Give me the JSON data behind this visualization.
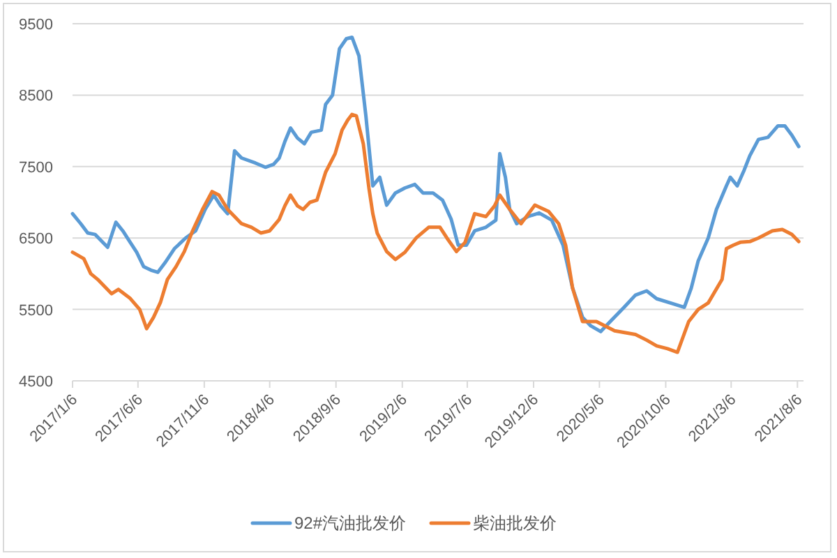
{
  "chart_data": {
    "type": "line",
    "xlim": [
      "2017-01-06",
      "2021-08-20"
    ],
    "xticks": [
      {
        "value": "2017-01-06",
        "label": "2017/1/6"
      },
      {
        "value": "2017-06-06",
        "label": "2017/6/6"
      },
      {
        "value": "2017-11-06",
        "label": "2017/11/6"
      },
      {
        "value": "2018-04-06",
        "label": "2018/4/6"
      },
      {
        "value": "2018-09-06",
        "label": "2018/9/6"
      },
      {
        "value": "2019-02-06",
        "label": "2019/2/6"
      },
      {
        "value": "2019-07-06",
        "label": "2019/7/6"
      },
      {
        "value": "2019-12-06",
        "label": "2019/12/6"
      },
      {
        "value": "2020-05-06",
        "label": "2020/5/6"
      },
      {
        "value": "2020-10-06",
        "label": "2020/10/6"
      },
      {
        "value": "2021-03-06",
        "label": "2021/3/6"
      },
      {
        "value": "2021-08-06",
        "label": "2021/8/6"
      }
    ],
    "ylim": [
      4500,
      9500
    ],
    "yticks": [
      4500,
      5500,
      6500,
      7500,
      8500,
      9500
    ],
    "grid": "y",
    "legend": "bottom",
    "series": [
      {
        "name": "92#汽油批发价",
        "color": "#5b9bd5",
        "x": [
          "2017-01-06",
          "2017-01-25",
          "2017-02-10",
          "2017-02-27",
          "2017-03-15",
          "2017-03-28",
          "2017-04-16",
          "2017-05-02",
          "2017-05-18",
          "2017-06-03",
          "2017-06-19",
          "2017-07-06",
          "2017-07-22",
          "2017-08-07",
          "2017-08-29",
          "2017-09-24",
          "2017-10-17",
          "2017-11-08",
          "2017-11-28",
          "2017-12-14",
          "2017-12-30",
          "2018-01-15",
          "2018-01-31",
          "2018-03-04",
          "2018-03-27",
          "2018-04-15",
          "2018-04-28",
          "2018-05-11",
          "2018-05-24",
          "2018-06-09",
          "2018-06-25",
          "2018-07-11",
          "2018-08-03",
          "2018-08-13",
          "2018-08-29",
          "2018-09-14",
          "2018-09-30",
          "2018-10-13",
          "2018-10-29",
          "2018-11-14",
          "2018-11-30",
          "2018-12-16",
          "2019-01-01",
          "2019-01-21",
          "2019-02-12",
          "2019-03-07",
          "2019-03-26",
          "2019-04-18",
          "2019-05-10",
          "2019-05-30",
          "2019-06-15",
          "2019-07-04",
          "2019-07-23",
          "2019-08-18",
          "2019-09-10",
          "2019-09-19",
          "2019-10-02",
          "2019-10-12",
          "2019-10-28",
          "2019-11-23",
          "2019-12-19",
          "2020-01-17",
          "2020-02-12",
          "2020-03-05",
          "2020-03-28",
          "2020-04-16",
          "2020-05-09",
          "2020-06-03",
          "2020-07-02",
          "2020-07-28",
          "2020-08-23",
          "2020-09-15",
          "2020-10-17",
          "2020-11-18",
          "2020-12-04",
          "2020-12-20",
          "2021-01-12",
          "2021-01-31",
          "2021-02-23",
          "2021-03-04",
          "2021-03-20",
          "2021-04-05",
          "2021-04-18",
          "2021-05-08",
          "2021-05-30",
          "2021-06-22",
          "2021-07-08",
          "2021-07-24",
          "2021-08-09"
        ],
        "values": [
          6840,
          6700,
          6570,
          6550,
          6450,
          6370,
          6720,
          6600,
          6450,
          6300,
          6100,
          6050,
          6020,
          6150,
          6350,
          6500,
          6600,
          6900,
          7100,
          6950,
          6840,
          7720,
          7620,
          7550,
          7490,
          7530,
          7620,
          7850,
          8040,
          7900,
          7820,
          7980,
          8010,
          8370,
          8500,
          9150,
          9290,
          9310,
          9050,
          8210,
          7230,
          7350,
          6960,
          7130,
          7200,
          7250,
          7130,
          7130,
          7030,
          6760,
          6400,
          6400,
          6600,
          6650,
          6750,
          7680,
          7350,
          6900,
          6700,
          6800,
          6850,
          6750,
          6400,
          5800,
          5390,
          5270,
          5190,
          5350,
          5530,
          5700,
          5760,
          5650,
          5590,
          5530,
          5800,
          6180,
          6500,
          6900,
          7230,
          7350,
          7230,
          7450,
          7650,
          7880,
          7910,
          8070,
          8070,
          7940,
          7780
        ]
      },
      {
        "name": "柴油批发价",
        "color": "#ed7d31",
        "x": [
          "2017-01-06",
          "2017-02-01",
          "2017-02-17",
          "2017-03-05",
          "2017-04-06",
          "2017-04-22",
          "2017-05-18",
          "2017-06-10",
          "2017-06-26",
          "2017-07-12",
          "2017-07-28",
          "2017-08-13",
          "2017-09-02",
          "2017-09-21",
          "2017-10-10",
          "2017-11-02",
          "2017-11-24",
          "2017-12-10",
          "2017-12-30",
          "2018-01-15",
          "2018-01-31",
          "2018-02-23",
          "2018-03-17",
          "2018-04-06",
          "2018-04-28",
          "2018-05-11",
          "2018-05-24",
          "2018-06-09",
          "2018-06-22",
          "2018-07-08",
          "2018-07-24",
          "2018-08-13",
          "2018-09-04",
          "2018-09-20",
          "2018-10-03",
          "2018-10-13",
          "2018-10-23",
          "2018-11-08",
          "2018-11-21",
          "2018-11-30",
          "2018-12-10",
          "2019-01-01",
          "2019-01-21",
          "2019-02-12",
          "2019-03-10",
          "2019-04-08",
          "2019-05-04",
          "2019-05-20",
          "2019-06-11",
          "2019-07-01",
          "2019-07-23",
          "2019-08-18",
          "2019-09-07",
          "2019-09-19",
          "2019-10-12",
          "2019-11-07",
          "2019-12-09",
          "2020-01-10",
          "2020-02-02",
          "2020-02-18",
          "2020-03-05",
          "2020-03-28",
          "2020-04-29",
          "2020-06-10",
          "2020-07-28",
          "2020-08-23",
          "2020-09-15",
          "2020-10-10",
          "2020-11-02",
          "2020-11-28",
          "2020-12-20",
          "2021-01-12",
          "2021-02-13",
          "2021-02-23",
          "2021-03-11",
          "2021-03-27",
          "2021-04-18",
          "2021-05-08",
          "2021-06-09",
          "2021-07-02",
          "2021-07-24",
          "2021-08-09"
        ],
        "values": [
          6300,
          6210,
          6000,
          5920,
          5720,
          5780,
          5660,
          5500,
          5230,
          5390,
          5600,
          5920,
          6100,
          6310,
          6600,
          6900,
          7150,
          7100,
          6900,
          6800,
          6700,
          6650,
          6570,
          6600,
          6760,
          6950,
          7100,
          6950,
          6900,
          7000,
          7030,
          7420,
          7680,
          8010,
          8150,
          8230,
          8210,
          7820,
          7200,
          6840,
          6570,
          6310,
          6200,
          6300,
          6500,
          6650,
          6650,
          6500,
          6310,
          6440,
          6840,
          6800,
          6950,
          7100,
          6900,
          6700,
          6960,
          6870,
          6700,
          6400,
          5800,
          5330,
          5330,
          5200,
          5150,
          5070,
          4990,
          4950,
          4900,
          5330,
          5500,
          5590,
          5920,
          6350,
          6400,
          6440,
          6450,
          6500,
          6600,
          6620,
          6550,
          6450
        ]
      }
    ]
  }
}
